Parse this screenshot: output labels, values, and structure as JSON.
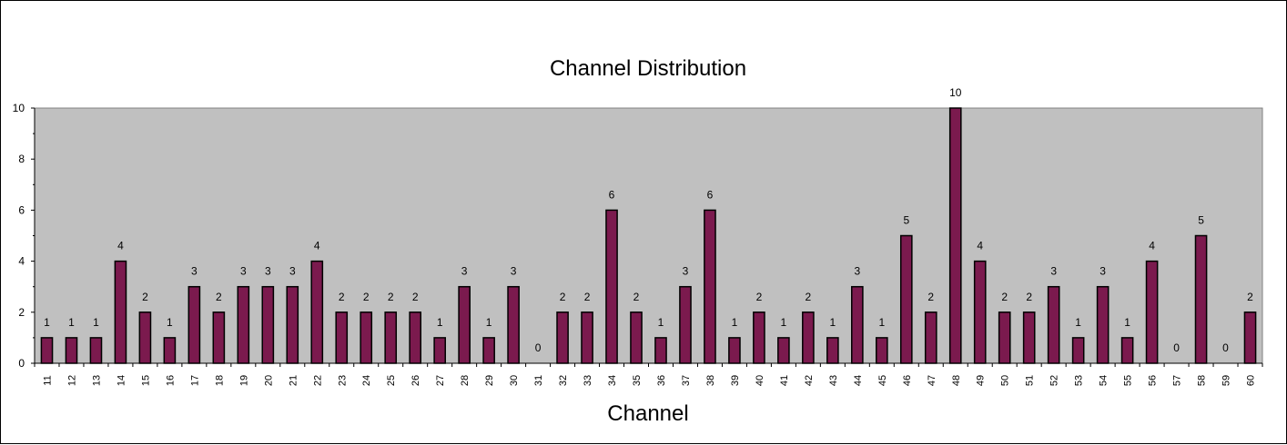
{
  "chart_data": {
    "type": "bar",
    "title": "Channel Distribution",
    "xlabel": "Channel",
    "ylabel": "",
    "ylim": [
      0,
      10
    ],
    "yticks": [
      0,
      2,
      4,
      6,
      8,
      10
    ],
    "grid": false,
    "legend": "none",
    "categories": [
      "11",
      "12",
      "13",
      "14",
      "15",
      "16",
      "17",
      "18",
      "19",
      "20",
      "21",
      "22",
      "23",
      "24",
      "25",
      "26",
      "27",
      "28",
      "29",
      "30",
      "31",
      "32",
      "33",
      "34",
      "35",
      "36",
      "37",
      "38",
      "39",
      "40",
      "41",
      "42",
      "43",
      "44",
      "45",
      "46",
      "47",
      "48",
      "49",
      "50",
      "51",
      "52",
      "53",
      "54",
      "55",
      "56",
      "57",
      "58",
      "59",
      "60"
    ],
    "values": [
      1,
      1,
      1,
      4,
      2,
      1,
      3,
      2,
      3,
      3,
      3,
      4,
      2,
      2,
      2,
      2,
      1,
      3,
      1,
      3,
      0,
      2,
      2,
      6,
      2,
      1,
      3,
      6,
      1,
      2,
      1,
      2,
      1,
      3,
      1,
      5,
      2,
      10,
      4,
      2,
      2,
      3,
      1,
      3,
      1,
      4,
      0,
      5,
      0,
      2
    ],
    "bar_color": "#7b1a4e",
    "plot_background": "#c0c0c0"
  }
}
